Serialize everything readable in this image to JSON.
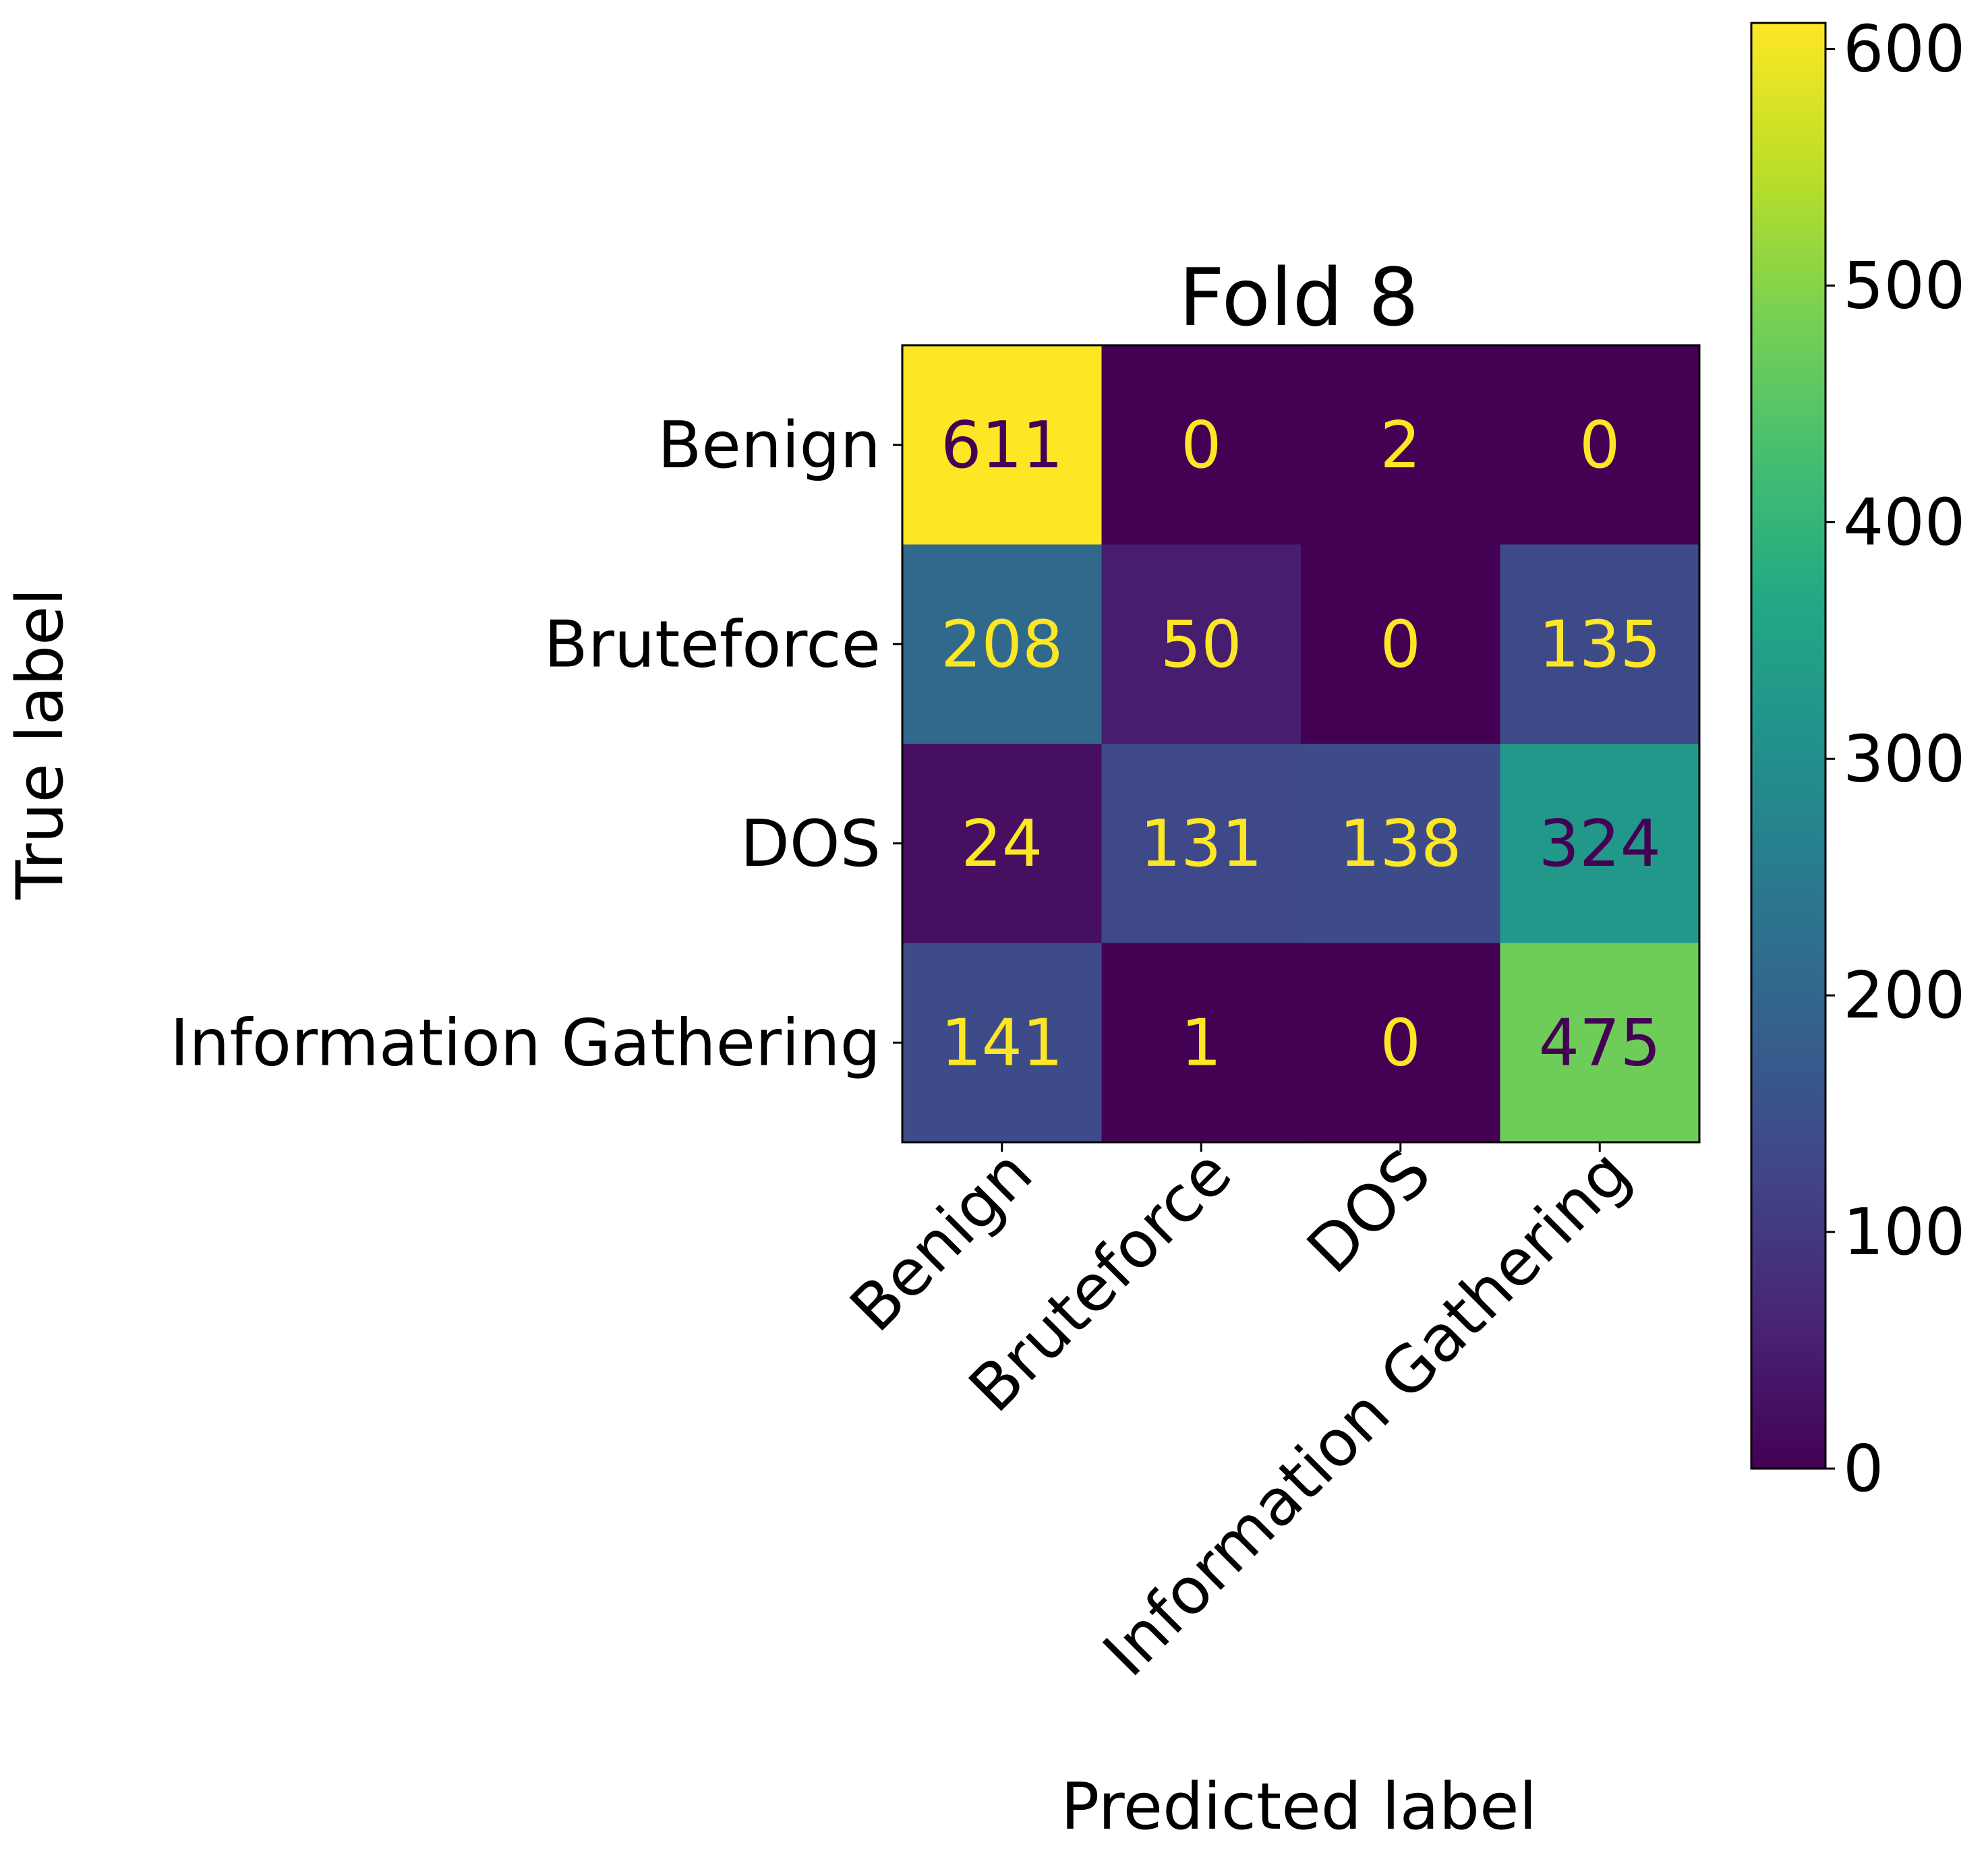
{
  "chart_data": {
    "type": "heatmap",
    "title": "Fold 8",
    "xlabel": "Predicted label",
    "ylabel": "True label",
    "x_categories": [
      "Benign",
      "Bruteforce",
      "DOS",
      "Information Gathering"
    ],
    "y_categories": [
      "Benign",
      "Bruteforce",
      "DOS",
      "Information Gathering"
    ],
    "values": [
      [
        611,
        0,
        2,
        0
      ],
      [
        208,
        50,
        0,
        135
      ],
      [
        24,
        131,
        138,
        324
      ],
      [
        141,
        1,
        0,
        475
      ]
    ],
    "colormap": "viridis",
    "colorbar": {
      "min": 0,
      "max": 611,
      "ticks": [
        0,
        100,
        200,
        300,
        400,
        500,
        600
      ]
    },
    "text_colors": {
      "on_dark": "#fde725",
      "on_light": "#440154"
    },
    "x_tick_rotation_deg": 45
  }
}
